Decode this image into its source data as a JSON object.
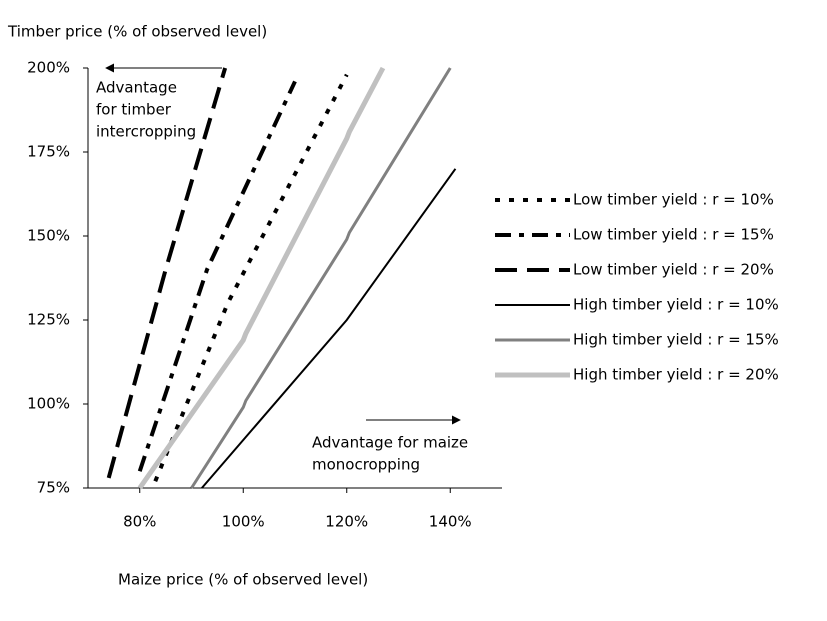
{
  "chart_data": {
    "type": "line",
    "y_axis_label": "Timber price (% of observed level)",
    "x_axis_label": "Maize price (% of observed level)",
    "xlim": [
      70,
      150
    ],
    "xticks": [
      {
        "value": 80,
        "label": "80%"
      },
      {
        "value": 100,
        "label": "100%"
      },
      {
        "value": 120,
        "label": "120%"
      },
      {
        "value": 140,
        "label": "140%"
      }
    ],
    "ylim": [
      75,
      200
    ],
    "yticks": [
      {
        "value": 75,
        "label": "75%"
      },
      {
        "value": 100,
        "label": "100%"
      },
      {
        "value": 125,
        "label": "125%"
      },
      {
        "value": 150,
        "label": "150%"
      },
      {
        "value": 175,
        "label": "175%"
      },
      {
        "value": 200,
        "label": "200%"
      }
    ],
    "grid": false,
    "legend": "right",
    "annotations": [
      {
        "lines": [
          "Advantage",
          "for timber",
          "intercropping"
        ]
      },
      {
        "lines": [
          "Advantage for maize",
          "monocropping"
        ]
      }
    ],
    "series": [
      {
        "name": "Low  timber yield : r = 10%",
        "color": "#000000",
        "width": 4,
        "dash": "5,9",
        "x": [
          83,
          97,
          120
        ],
        "values": [
          77,
          130,
          198
        ]
      },
      {
        "name": "Low  timber yield : r = 15%",
        "color": "#000000",
        "width": 4,
        "dash": "16,8,5,8",
        "x": [
          80,
          93,
          110
        ],
        "values": [
          80,
          140,
          196
        ]
      },
      {
        "name": "Low  timber yield : r = 20%",
        "color": "#000000",
        "width": 4,
        "dash": "22,10",
        "x": [
          74,
          85,
          96.5
        ],
        "values": [
          78,
          140,
          200
        ]
      },
      {
        "name": "High timber yield : r = 10%",
        "color": "#000000",
        "width": 2,
        "dash": "none",
        "x": [
          92,
          120,
          141
        ],
        "values": [
          75,
          125,
          170
        ]
      },
      {
        "name": "High timber yield : r = 15%",
        "color": "#808080",
        "width": 3,
        "dash": "none",
        "x": [
          90,
          100,
          100.5,
          120,
          120.5,
          140
        ],
        "values": [
          75,
          99,
          101,
          149,
          151,
          200
        ]
      },
      {
        "name": "High timber yield : r = 20%",
        "color": "#c0c0c0",
        "width": 5,
        "dash": "none",
        "x": [
          80,
          100,
          100.5,
          120,
          120.5,
          127
        ],
        "values": [
          75,
          119,
          121,
          179,
          181,
          200
        ]
      }
    ]
  }
}
